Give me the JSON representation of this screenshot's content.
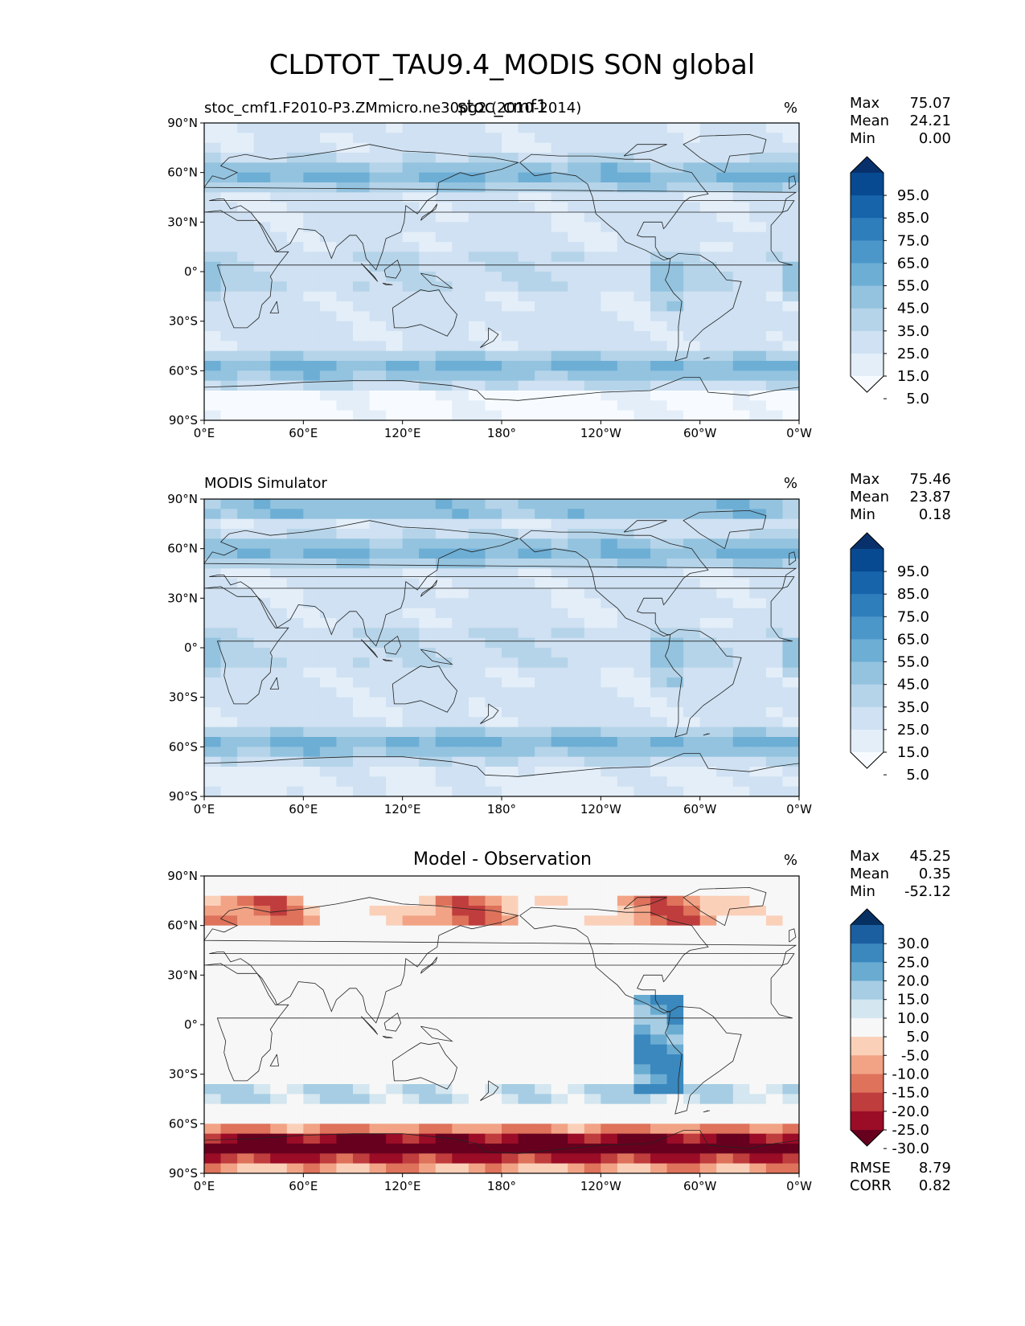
{
  "figure": {
    "title": "CLDTOT_TAU9.4_MODIS SON global"
  },
  "axes_ticks": {
    "x": [
      "0°E",
      "60°E",
      "120°E",
      "180°",
      "120°W",
      "60°W",
      "0°W"
    ],
    "y": [
      "90°N",
      "60°N",
      "30°N",
      "0°",
      "30°S",
      "60°S",
      "90°S"
    ]
  },
  "chart_data": [
    {
      "type": "heatmap",
      "left_title": "stoc_cmf1.F2010-P3.ZMmicro.ne30pg2 (2010-2014)",
      "center_title": "stoc_cmf1",
      "units": "%",
      "xlim": [
        0,
        360
      ],
      "ylim": [
        -90,
        90
      ],
      "stats": {
        "max_label": "Max",
        "max": "75.07",
        "mean_label": "Mean",
        "mean": "24.21",
        "min_label": "Min",
        "min": "0.00"
      },
      "colorbar": {
        "ticks": [
          "95.0",
          "85.0",
          "75.0",
          "65.0",
          "55.0",
          "45.0",
          "35.0",
          "25.0",
          "15.0",
          "5.0"
        ],
        "colors": [
          "#f7fbff",
          "#e3eef9",
          "#cfe1f2",
          "#b5d4e9",
          "#93c3df",
          "#6daed5",
          "#4b97c9",
          "#2f7ebc",
          "#1764ab",
          "#084a91",
          "#08306b"
        ]
      }
    },
    {
      "type": "heatmap",
      "left_title": "MODIS Simulator",
      "units": "%",
      "xlim": [
        0,
        360
      ],
      "ylim": [
        -90,
        90
      ],
      "stats": {
        "max_label": "Max",
        "max": "75.46",
        "mean_label": "Mean",
        "mean": "23.87",
        "min_label": "Min",
        "min": "0.18"
      },
      "colorbar": {
        "ticks": [
          "95.0",
          "85.0",
          "75.0",
          "65.0",
          "55.0",
          "45.0",
          "35.0",
          "25.0",
          "15.0",
          "5.0"
        ],
        "colors": [
          "#f7fbff",
          "#e3eef9",
          "#cfe1f2",
          "#b5d4e9",
          "#93c3df",
          "#6daed5",
          "#4b97c9",
          "#2f7ebc",
          "#1764ab",
          "#084a91",
          "#08306b"
        ]
      }
    },
    {
      "type": "heatmap",
      "center_title": "Model - Observation",
      "units": "%",
      "xlim": [
        0,
        360
      ],
      "ylim": [
        -90,
        90
      ],
      "stats": {
        "max_label": "Max",
        "max": "45.25",
        "mean_label": "Mean",
        "mean": "0.35",
        "min_label": "Min",
        "min": "-52.12"
      },
      "colorbar": {
        "ticks": [
          "30.0",
          "25.0",
          "20.0",
          "15.0",
          "10.0",
          "5.0",
          "-5.0",
          "-10.0",
          "-15.0",
          "-20.0",
          "-25.0",
          "-30.0"
        ],
        "colors": [
          "#67001f",
          "#9b0c27",
          "#c03d3d",
          "#de725b",
          "#f2a385",
          "#fbd0b9",
          "#f7f7f7",
          "#d4e6f0",
          "#a6cde3",
          "#6aabd1",
          "#3a88be",
          "#1b5fa0",
          "#053061"
        ]
      },
      "metrics": {
        "rmse_label": "RMSE",
        "rmse": "8.79",
        "corr_label": "CORR",
        "corr": "0.82"
      }
    }
  ]
}
